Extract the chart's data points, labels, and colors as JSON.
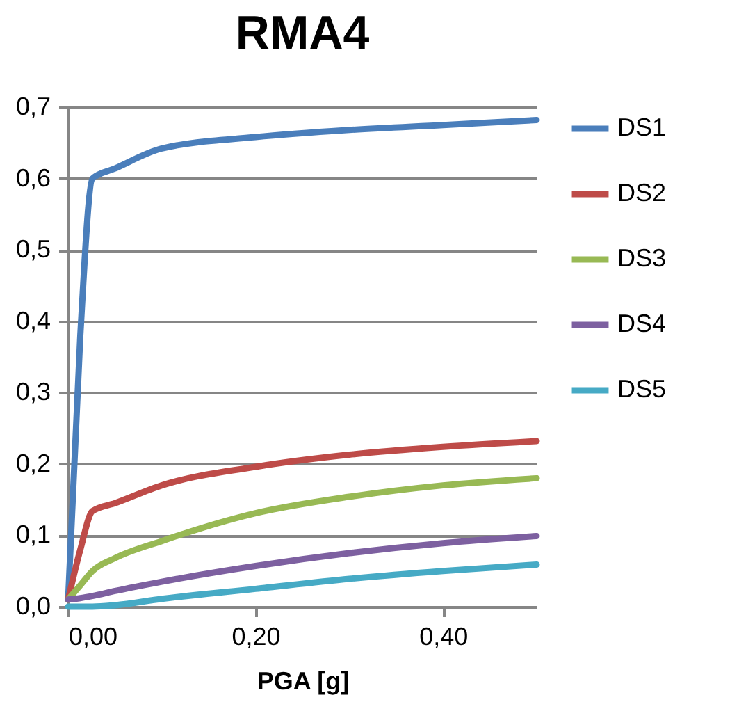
{
  "chart_data": {
    "type": "line",
    "title": "RMA4",
    "xlabel": "PGA [g]",
    "legend": "right",
    "grid": "y",
    "marker": "none",
    "line_style": "solid",
    "xlim": [
      0,
      0.5
    ],
    "ylim": [
      0,
      0.7
    ],
    "xticks": [
      {
        "value": 0,
        "label": "0,00"
      },
      {
        "value": 0.2,
        "label": "0,20"
      },
      {
        "value": 0.4,
        "label": "0,40"
      }
    ],
    "yticks": [
      {
        "value": 0,
        "label": "0,0"
      },
      {
        "value": 0.1,
        "label": "0,1"
      },
      {
        "value": 0.2,
        "label": "0,2"
      },
      {
        "value": 0.3,
        "label": "0,3"
      },
      {
        "value": 0.4,
        "label": "0,4"
      },
      {
        "value": 0.5,
        "label": "0,5"
      },
      {
        "value": 0.6,
        "label": "0,6"
      },
      {
        "value": 0.7,
        "label": "0,7"
      }
    ],
    "x": [
      0,
      0.013,
      0.026,
      0.05,
      0.1,
      0.2,
      0.3,
      0.4,
      0.5
    ],
    "series": [
      {
        "name": "DS1",
        "color": "#4a7ebb",
        "values": [
          0.01,
          0.38,
          0.6,
          0.614,
          0.642,
          0.658,
          0.668,
          0.675,
          0.682
        ]
      },
      {
        "name": "DS2",
        "color": "#be4b48",
        "values": [
          0.01,
          0.08,
          0.134,
          0.145,
          0.17,
          0.196,
          0.213,
          0.224,
          0.232
        ]
      },
      {
        "name": "DS3",
        "color": "#98b954",
        "values": [
          0.01,
          0.03,
          0.05,
          0.068,
          0.092,
          0.131,
          0.154,
          0.17,
          0.18
        ]
      },
      {
        "name": "DS4",
        "color": "#7d60a0",
        "values": [
          0.01,
          0.012,
          0.015,
          0.022,
          0.035,
          0.057,
          0.075,
          0.089,
          0.099
        ]
      },
      {
        "name": "DS5",
        "color": "#46aac5",
        "values": [
          0.0,
          0.0,
          0.0,
          0.002,
          0.011,
          0.025,
          0.039,
          0.05,
          0.059
        ]
      }
    ]
  }
}
